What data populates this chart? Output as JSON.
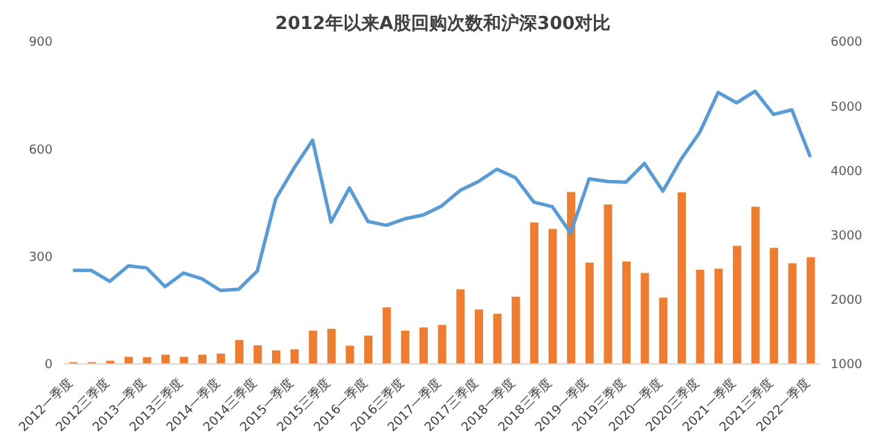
{
  "chart_data": {
    "type": "bar",
    "title": "2012年以来A股回购次数和沪深300对比",
    "categories": [
      "2012一季度",
      null,
      "2012三季度",
      null,
      "2013一季度",
      null,
      "2013三季度",
      null,
      "2014一季度",
      null,
      "2014三季度",
      null,
      "2015一季度",
      null,
      "2015三季度",
      null,
      "2016一季度",
      null,
      "2016三季度",
      null,
      "2017一季度",
      null,
      "2017三季度",
      null,
      "2018一季度",
      null,
      "2018三季度",
      null,
      "2019一季度",
      null,
      "2019三季度",
      null,
      "2020一季度",
      null,
      "2020三季度",
      null,
      "2021一季度",
      null,
      "2021三季度",
      null,
      "2022一季度"
    ],
    "series": [
      {
        "color": "#ed7d31",
        "values": [
          5,
          5,
          9,
          20,
          19,
          26,
          20,
          26,
          29,
          67,
          52,
          38,
          41,
          93,
          98,
          51,
          79,
          158,
          93,
          102,
          109,
          208,
          152,
          140,
          188,
          395,
          377,
          480,
          283,
          445,
          286,
          254,
          185,
          479,
          263,
          266,
          330,
          439,
          324,
          281,
          298
        ]
      },
      {
        "type": "line",
        "axis": "y2",
        "color": "#5b9bd5",
        "values": [
          2450,
          2450,
          2280,
          2520,
          2490,
          2200,
          2410,
          2320,
          2140,
          2160,
          2440,
          3560,
          4040,
          4470,
          3200,
          3730,
          3210,
          3150,
          3250,
          3310,
          3450,
          3690,
          3830,
          4020,
          3890,
          3510,
          3440,
          3030,
          3870,
          3830,
          3820,
          4110,
          3680,
          4180,
          4590,
          5210,
          5050,
          5230,
          4870,
          4940,
          4210
        ]
      }
    ],
    "ylim": [
      0,
      900
    ],
    "yticks": [
      0,
      300,
      600,
      900
    ],
    "y2lim": [
      1000,
      6000
    ],
    "y2ticks": [
      1000,
      2000,
      3000,
      4000,
      5000,
      6000
    ],
    "grid": false,
    "legend": false,
    "marker": "none",
    "line_style": "solid"
  }
}
